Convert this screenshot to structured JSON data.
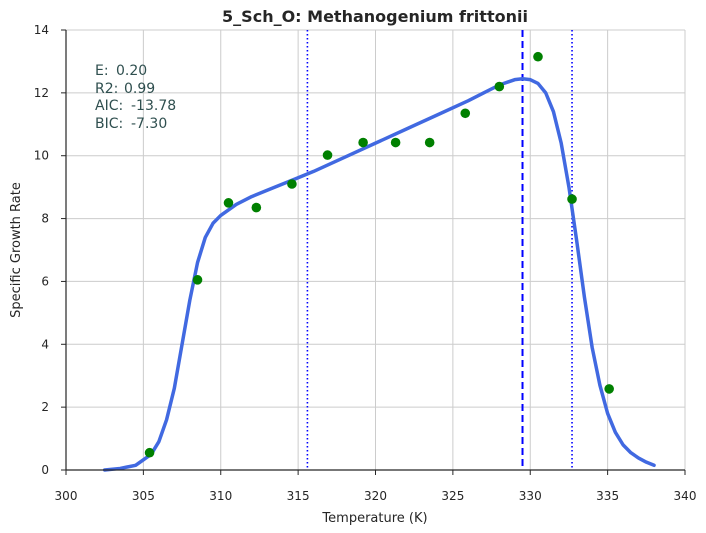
{
  "chart_data": {
    "type": "scatter",
    "title": "5_Sch_O: Methanogenium frittonii",
    "xlabel": "Temperature (K)",
    "ylabel": "Specific Growth Rate",
    "xlim": [
      300,
      340
    ],
    "ylim": [
      0,
      14
    ],
    "xticks": [
      300,
      305,
      310,
      315,
      320,
      325,
      330,
      335,
      340
    ],
    "yticks": [
      0,
      2,
      4,
      6,
      8,
      10,
      12,
      14
    ],
    "grid": true,
    "annotations": [
      {
        "label": "E:",
        "value": " 0.20"
      },
      {
        "label": "R2:",
        "value": " 0.99"
      },
      {
        "label": "AIC:",
        "value": "-13.78"
      },
      {
        "label": "BIC:",
        "value": "-7.30"
      }
    ],
    "points": {
      "color": "#008000",
      "x": [
        305.4,
        308.5,
        310.5,
        312.3,
        314.6,
        316.9,
        319.2,
        321.3,
        323.5,
        325.8,
        328.0,
        330.5,
        332.7,
        335.1
      ],
      "y": [
        0.55,
        6.05,
        8.5,
        8.35,
        9.1,
        10.02,
        10.42,
        10.42,
        10.42,
        11.35,
        12.2,
        13.15,
        8.62,
        2.58
      ]
    },
    "fit_curve": {
      "color": "#4169e1",
      "x": [
        302.5,
        303.5,
        304.5,
        305.5,
        306.0,
        306.5,
        307.0,
        307.5,
        308.0,
        308.5,
        309.0,
        309.5,
        310.0,
        311.0,
        312.0,
        313.0,
        314.0,
        315.0,
        316.0,
        318.0,
        320.0,
        322.0,
        324.0,
        326.0,
        327.0,
        328.0,
        329.0,
        329.5,
        330.0,
        330.5,
        331.0,
        331.5,
        332.0,
        332.5,
        333.0,
        333.5,
        334.0,
        334.5,
        335.0,
        335.5,
        336.0,
        336.5,
        337.0,
        337.5,
        338.0
      ],
      "y": [
        0.0,
        0.05,
        0.15,
        0.5,
        0.9,
        1.6,
        2.6,
        4.0,
        5.4,
        6.6,
        7.4,
        7.85,
        8.1,
        8.45,
        8.7,
        8.9,
        9.1,
        9.3,
        9.5,
        9.95,
        10.4,
        10.85,
        11.3,
        11.75,
        12.0,
        12.25,
        12.42,
        12.45,
        12.42,
        12.3,
        12.0,
        11.4,
        10.4,
        9.0,
        7.3,
        5.5,
        3.9,
        2.7,
        1.8,
        1.2,
        0.8,
        0.55,
        0.38,
        0.25,
        0.15
      ]
    },
    "vertical_lines": [
      {
        "x": 315.6,
        "style": "dotted",
        "color": "#0000ff"
      },
      {
        "x": 329.5,
        "style": "dashed",
        "color": "#0000ff"
      },
      {
        "x": 332.7,
        "style": "dotted",
        "color": "#0000ff"
      }
    ]
  }
}
